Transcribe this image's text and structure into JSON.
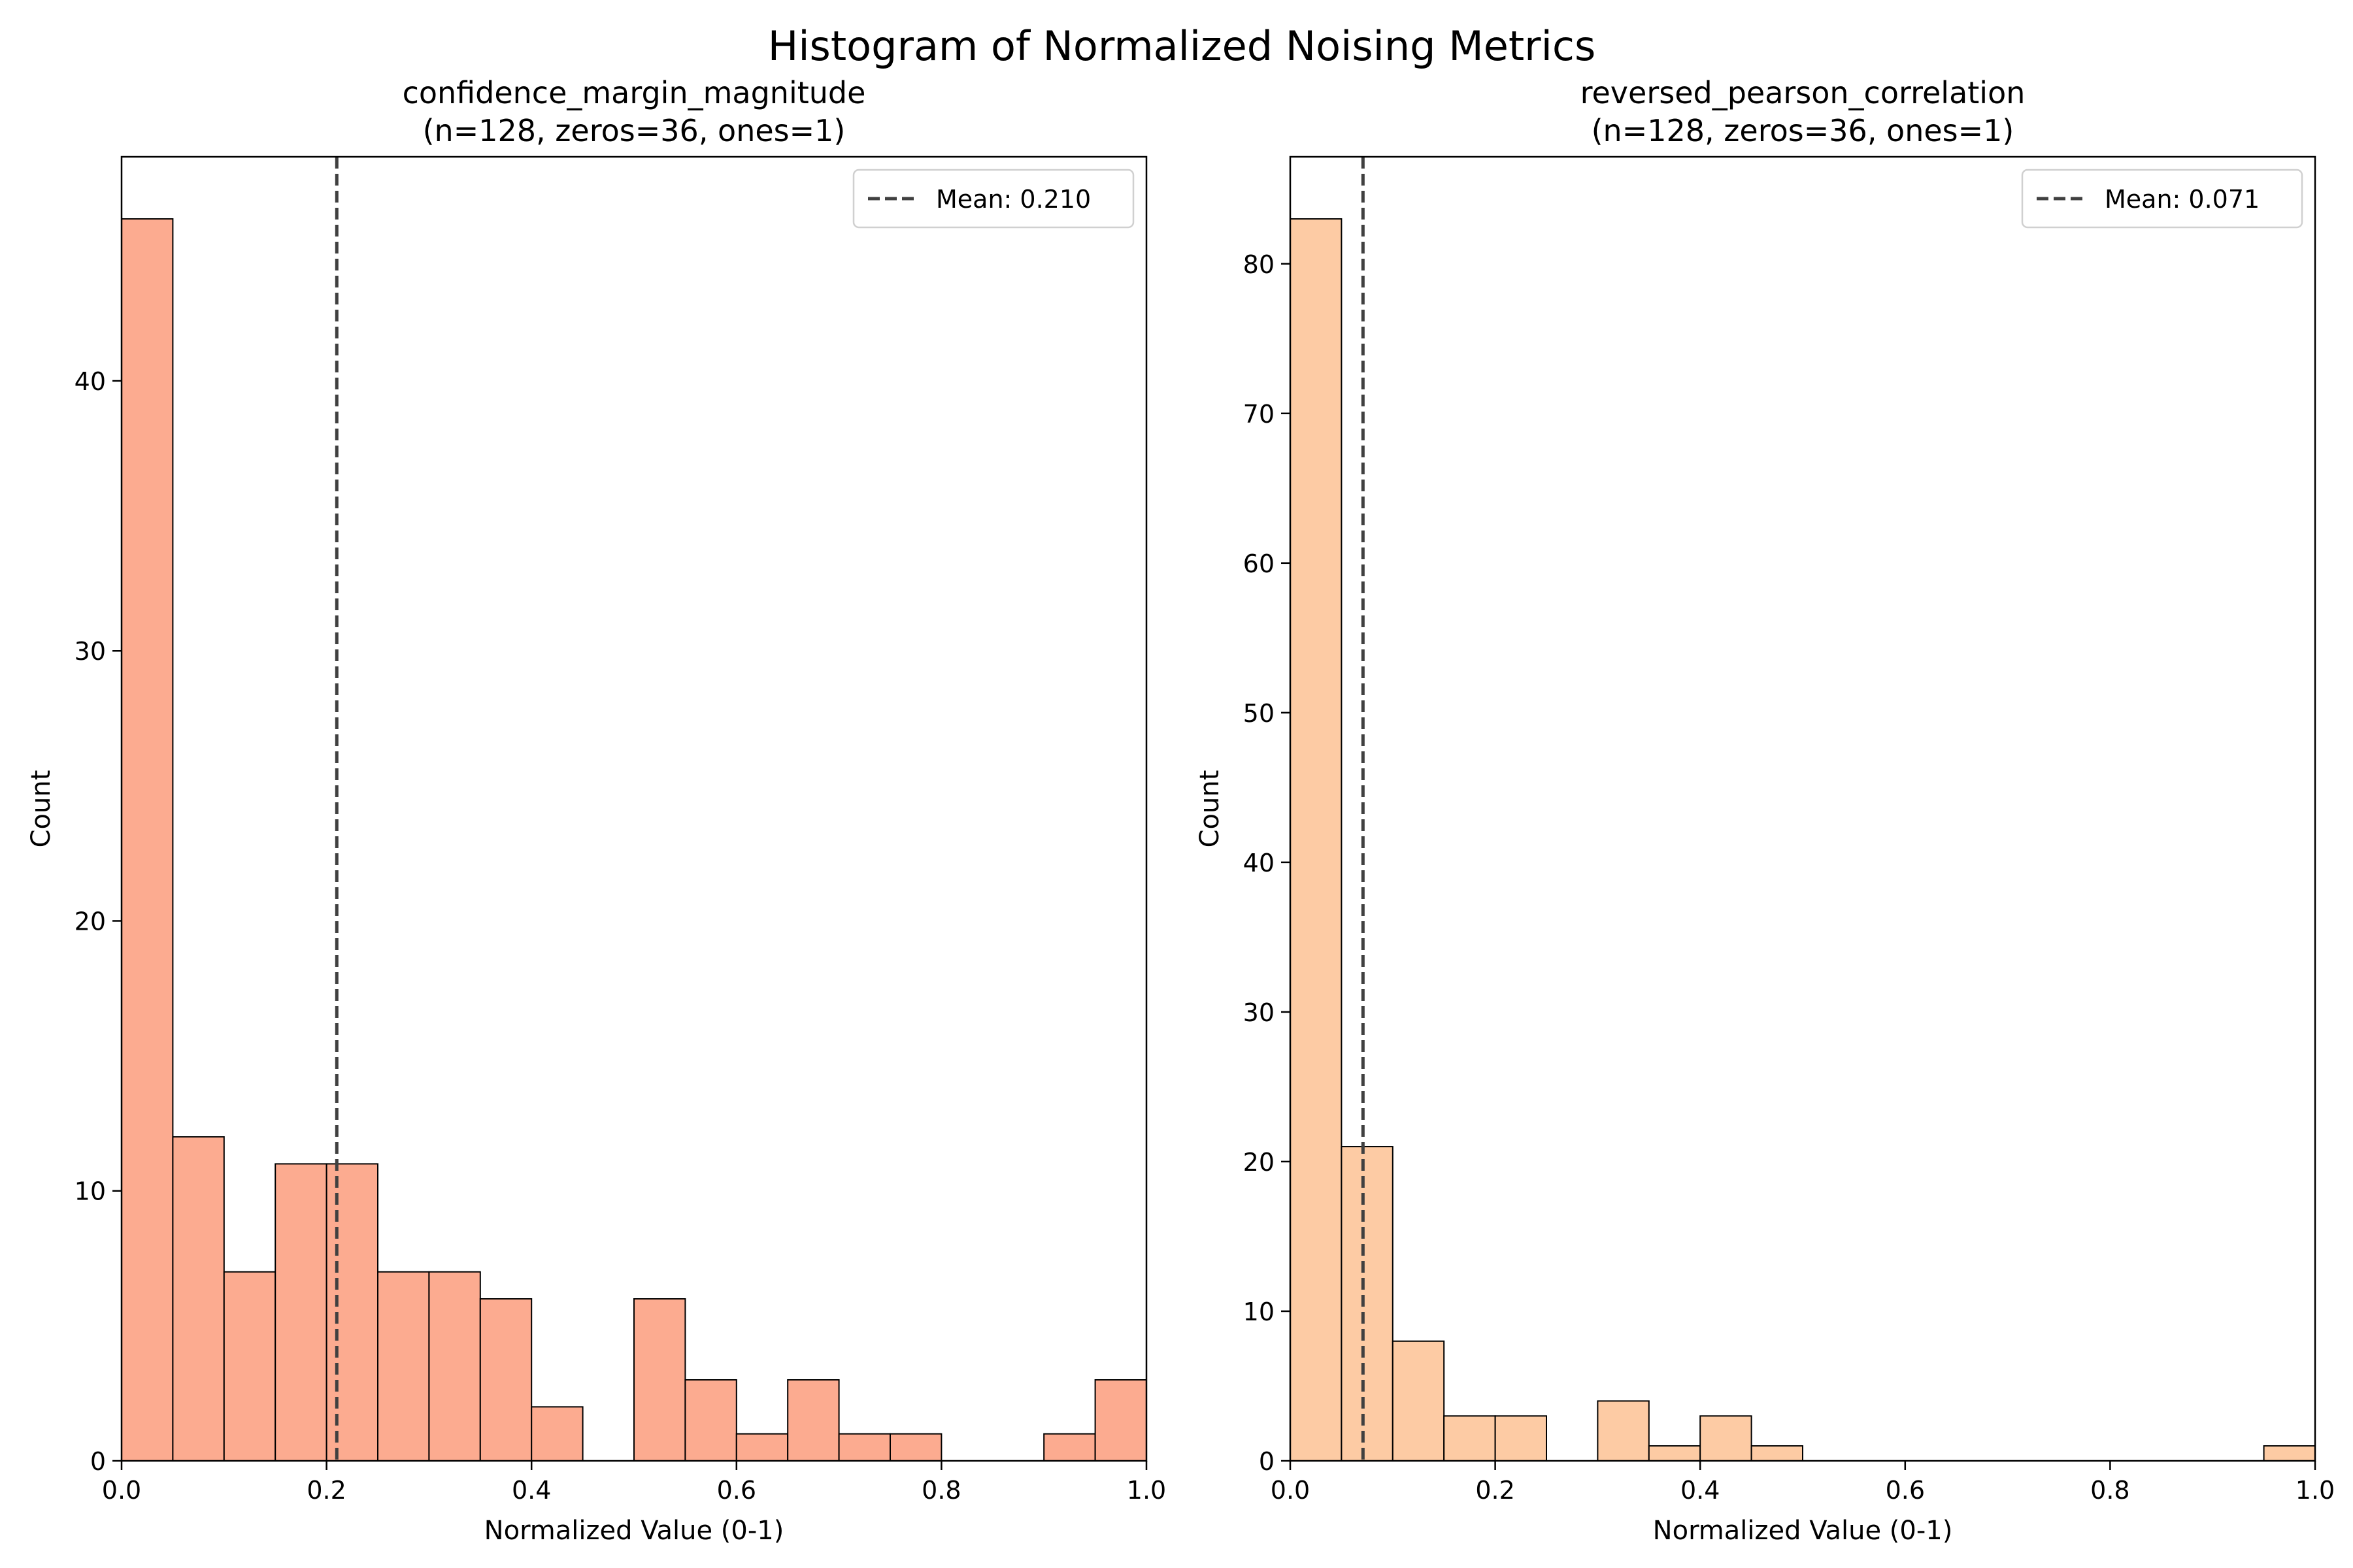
{
  "figure": {
    "title": "Histogram of Normalized Noising Metrics"
  },
  "chart_data": [
    {
      "type": "bar",
      "title": "confidence_margin_magnitude",
      "subtitle": "(n=128, zeros=36, ones=1)",
      "xlabel": "Normalized Value (0-1)",
      "ylabel": "Count",
      "xlim": [
        0,
        1
      ],
      "ylim": [
        0,
        48.3
      ],
      "xticks": [
        0.0,
        0.2,
        0.4,
        0.6,
        0.8,
        1.0
      ],
      "xtick_labels": [
        "0.0",
        "0.2",
        "0.4",
        "0.6",
        "0.8",
        "1.0"
      ],
      "yticks": [
        0,
        10,
        20,
        30,
        40
      ],
      "ytick_labels": [
        "0",
        "10",
        "20",
        "30",
        "40"
      ],
      "bin_width": 0.05,
      "bin_starts": [
        0.0,
        0.05,
        0.1,
        0.15,
        0.2,
        0.25,
        0.3,
        0.35,
        0.4,
        0.45,
        0.5,
        0.55,
        0.6,
        0.65,
        0.7,
        0.75,
        0.8,
        0.85,
        0.9,
        0.95
      ],
      "values": [
        46,
        12,
        7,
        11,
        11,
        7,
        7,
        6,
        2,
        0,
        6,
        3,
        1,
        3,
        1,
        1,
        0,
        0,
        1,
        3
      ],
      "mean": 0.21,
      "legend": {
        "label": "Mean: 0.210",
        "placement": "top-right"
      },
      "bar_color": "#fcab90",
      "edge_color": "#000000",
      "mean_line_color": "#404040",
      "grid": false
    },
    {
      "type": "bar",
      "title": "reversed_pearson_correlation",
      "subtitle": "(n=128, zeros=36, ones=1)",
      "xlabel": "Normalized Value (0-1)",
      "ylabel": "Count",
      "xlim": [
        0,
        1
      ],
      "ylim": [
        0,
        87.15
      ],
      "xticks": [
        0.0,
        0.2,
        0.4,
        0.6,
        0.8,
        1.0
      ],
      "xtick_labels": [
        "0.0",
        "0.2",
        "0.4",
        "0.6",
        "0.8",
        "1.0"
      ],
      "yticks": [
        0,
        10,
        20,
        30,
        40,
        50,
        60,
        70,
        80
      ],
      "ytick_labels": [
        "0",
        "10",
        "20",
        "30",
        "40",
        "50",
        "60",
        "70",
        "80"
      ],
      "bin_width": 0.05,
      "bin_starts": [
        0.0,
        0.05,
        0.1,
        0.15,
        0.2,
        0.25,
        0.3,
        0.35,
        0.4,
        0.45,
        0.5,
        0.55,
        0.6,
        0.65,
        0.7,
        0.75,
        0.8,
        0.85,
        0.9,
        0.95
      ],
      "values": [
        83,
        21,
        8,
        3,
        3,
        0,
        4,
        1,
        3,
        1,
        0,
        0,
        0,
        0,
        0,
        0,
        0,
        0,
        0,
        1
      ],
      "mean": 0.071,
      "legend": {
        "label": "Mean: 0.071",
        "placement": "top-right"
      },
      "bar_color": "#fdcba4",
      "edge_color": "#000000",
      "mean_line_color": "#404040",
      "grid": false
    }
  ]
}
